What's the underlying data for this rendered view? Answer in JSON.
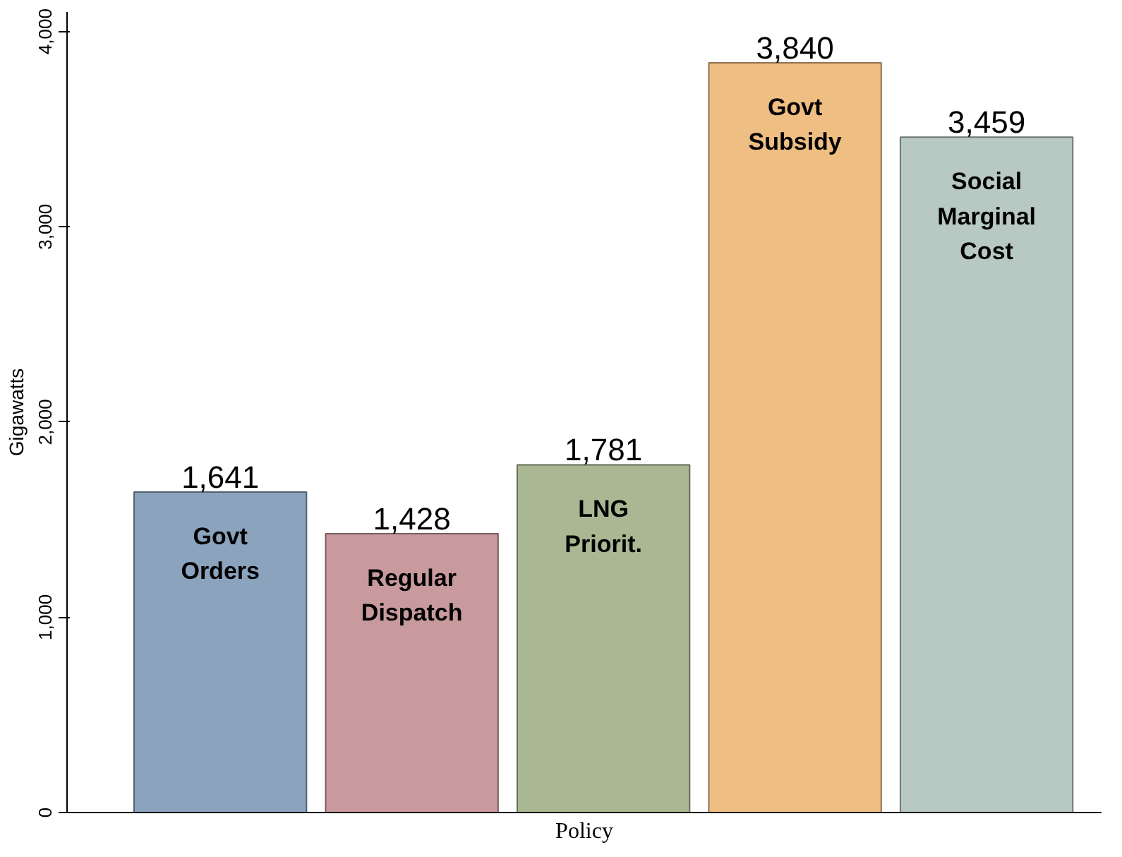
{
  "chart_data": {
    "type": "bar",
    "xlabel": "Policy",
    "ylabel": "Gigawatts",
    "categories": [
      "Govt Orders",
      "Regular Dispatch",
      "LNG Priorit.",
      "Govt Subsidy",
      "Social Marginal Cost"
    ],
    "values": [
      1641,
      1428,
      1781,
      3840,
      3459
    ],
    "colors": [
      "#8ba3bd",
      "#c99a9d",
      "#a9b893",
      "#efbe82",
      "#b8c9c3"
    ],
    "value_labels": [
      "1,641",
      "1,428",
      "1,781",
      "3,840",
      "3,459"
    ],
    "ylim": [
      0,
      4100
    ],
    "yticks": [
      0,
      {
        "value": 1000,
        "label": "1,000"
      },
      {
        "value": 2000,
        "label": "2,000"
      },
      {
        "value": 3000,
        "label": "3,000"
      },
      {
        "value": 4000,
        "label": "4,000"
      }
    ],
    "tick_labels": "y",
    "grid": false
  }
}
